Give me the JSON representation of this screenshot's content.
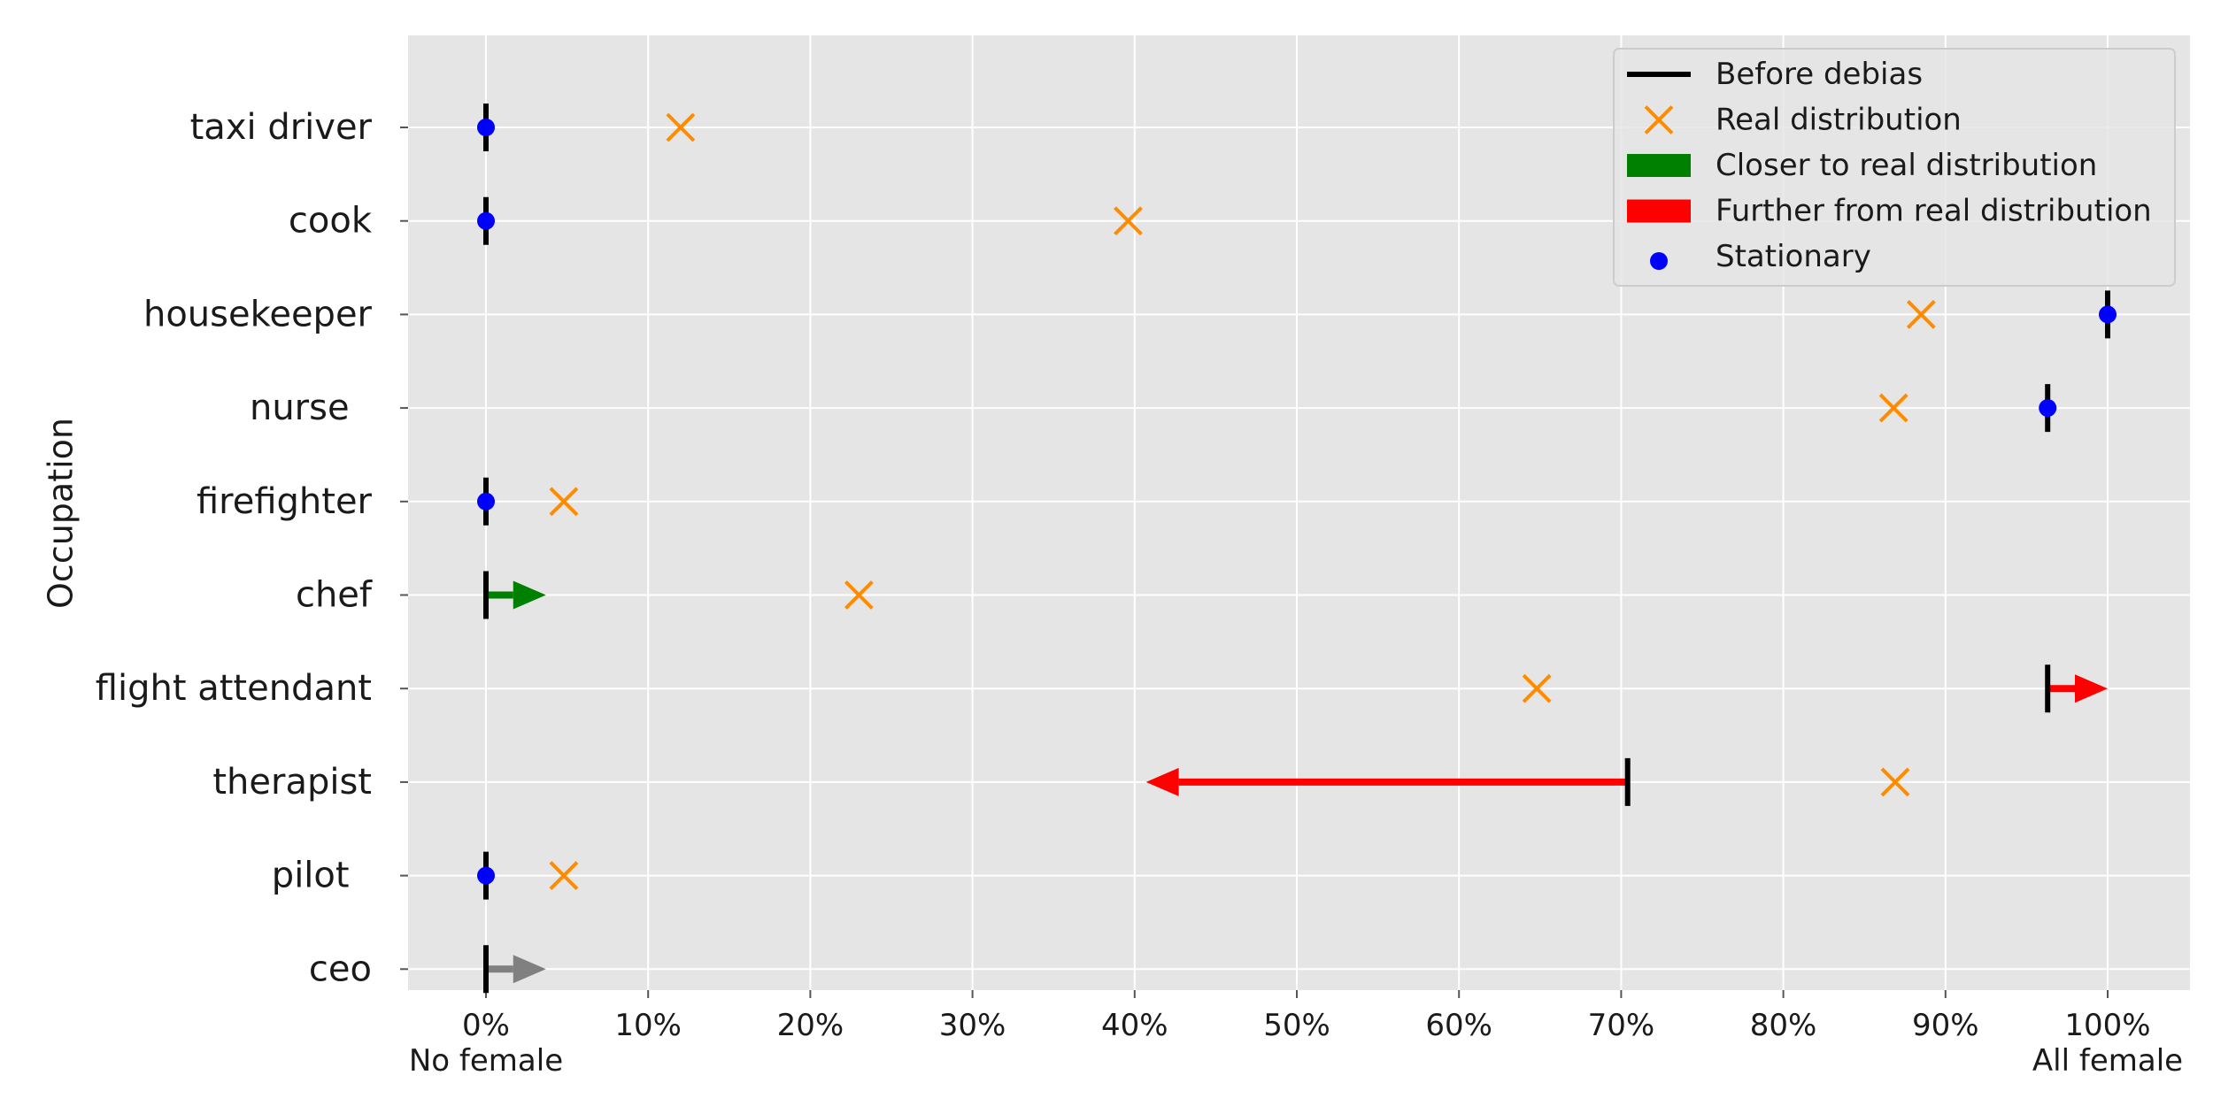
{
  "chart_data": {
    "type": "dumbbell-arrow",
    "ylabel": "Occupation",
    "xlim": [
      -5,
      105
    ],
    "x_ticks": [
      0,
      10,
      20,
      30,
      40,
      50,
      60,
      70,
      80,
      90,
      100
    ],
    "x_tick_labels": [
      "0%",
      "10%",
      "20%",
      "30%",
      "40%",
      "50%",
      "60%",
      "70%",
      "80%",
      "90%",
      "100%"
    ],
    "x_end_labels": {
      "left": "No female",
      "right": "All female"
    },
    "grid": true,
    "legend_position": "top-right",
    "legend": [
      {
        "label": "Before debias",
        "marker": "line",
        "color": "#000000"
      },
      {
        "label": "Real distribution",
        "marker": "x",
        "color": "#ff8c00"
      },
      {
        "label": "Closer to real distribution",
        "marker": "patch",
        "color": "#008000"
      },
      {
        "label": "Further from real distribution",
        "marker": "patch",
        "color": "#ff0000"
      },
      {
        "label": "Stationary",
        "marker": "dot",
        "color": "#0000ff"
      }
    ],
    "occupations": [
      {
        "label": "taxi driver",
        "before": 0,
        "after": 0,
        "real": 12,
        "status": "stationary"
      },
      {
        "label": "cook",
        "before": 0,
        "after": 0,
        "real": 39.6,
        "status": "stationary"
      },
      {
        "label": "housekeeper",
        "before": 100,
        "after": 100,
        "real": 88.5,
        "status": "stationary"
      },
      {
        "label": "nurse  ",
        "before": 96.3,
        "after": 96.3,
        "real": 86.8,
        "status": "stationary"
      },
      {
        "label": "firefighter",
        "before": 0,
        "after": 0,
        "real": 4.8,
        "status": "stationary"
      },
      {
        "label": "chef",
        "before": 0,
        "after": 3.7,
        "real": 23,
        "status": "closer"
      },
      {
        "label": "flight attendant",
        "before": 96.3,
        "after": 100,
        "real": 64.8,
        "status": "further"
      },
      {
        "label": "therapist",
        "before": 70.4,
        "after": 40.7,
        "real": 86.9,
        "status": "further"
      },
      {
        "label": "pilot  ",
        "before": 0,
        "after": 0,
        "real": 4.8,
        "status": "stationary"
      },
      {
        "label": "ceo",
        "before": 0,
        "after": 3.7,
        "real": null,
        "status": "unknown"
      }
    ],
    "colors": {
      "closer": "#008000",
      "further": "#ff0000",
      "unknown": "#808080",
      "stationary": "#0000ff",
      "real": "#ff8c00",
      "before": "#000000",
      "plot_bg": "#e5e5e5",
      "grid": "#ffffff"
    }
  }
}
